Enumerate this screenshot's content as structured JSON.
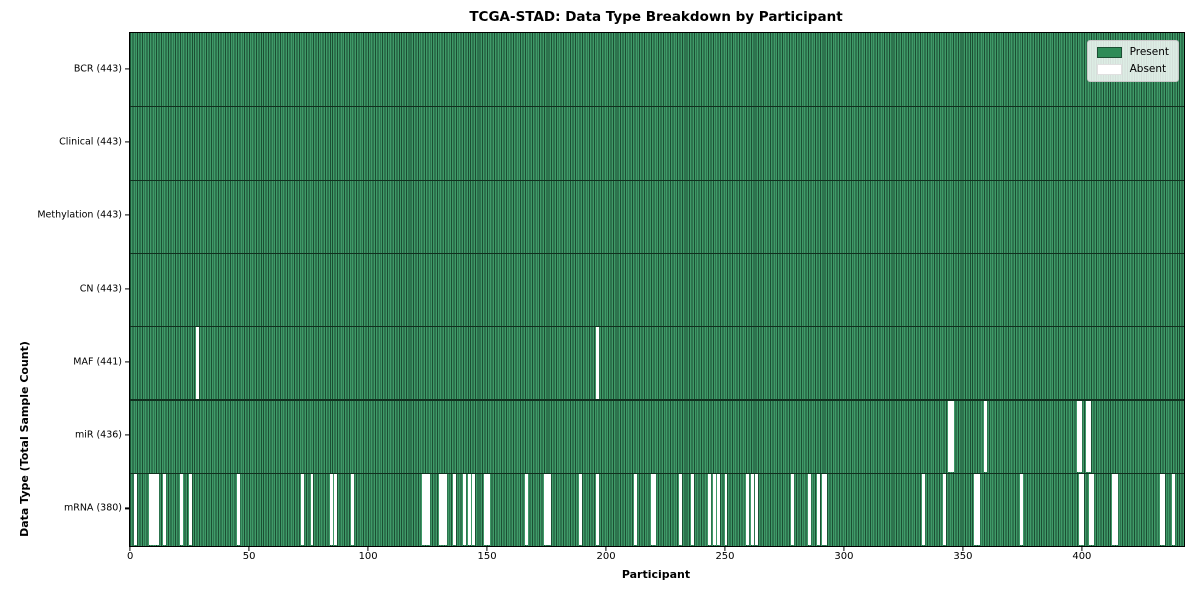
{
  "title": "TCGA-STAD: Data Type Breakdown by Participant",
  "xlabel": "Participant",
  "ylabel": "Data Type (Total Sample Count)",
  "legend": {
    "present_label": "Present",
    "absent_label": "Absent"
  },
  "colors": {
    "present": "#2e8b57",
    "present_light": "#3f9a68",
    "present_edge": "#1b4f33",
    "row_boundary": "#10301e",
    "absent": "#ffffff",
    "frame": "#000000",
    "legend_border": "#c8c8c8"
  },
  "chart_data": {
    "type": "heatmap",
    "title": "TCGA-STAD: Data Type Breakdown by Participant",
    "xlabel": "Participant",
    "ylabel": "Data Type (Total Sample Count)",
    "legend_entries": [
      "Present",
      "Absent"
    ],
    "legend_position": "upper right",
    "n_participants": 443,
    "x_ticks": [
      0,
      50,
      100,
      150,
      200,
      250,
      300,
      350,
      400
    ],
    "x_range": [
      -0.5,
      442.5
    ],
    "grid": false,
    "rows": [
      {
        "label": "BCR (443)",
        "data_type": "BCR",
        "present_count": 443,
        "absent_participants": []
      },
      {
        "label": "Clinical (443)",
        "data_type": "Clinical",
        "present_count": 443,
        "absent_participants": []
      },
      {
        "label": "Methylation (443)",
        "data_type": "Methylation",
        "present_count": 443,
        "absent_participants": []
      },
      {
        "label": "CN (443)",
        "data_type": "CN",
        "present_count": 443,
        "absent_participants": []
      },
      {
        "label": "MAF (441)",
        "data_type": "MAF",
        "present_count": 441,
        "absent_participants": [
          28,
          196
        ]
      },
      {
        "label": "miR (436)",
        "data_type": "miR",
        "present_count": 436,
        "absent_participants": [
          344,
          345,
          359,
          398,
          399,
          402,
          403
        ]
      },
      {
        "label": "mRNA (380)",
        "data_type": "mRNA",
        "present_count": 380,
        "absent_participants": [
          2,
          8,
          9,
          10,
          11,
          14,
          21,
          25,
          45,
          72,
          76,
          84,
          86,
          93,
          123,
          124,
          125,
          130,
          131,
          132,
          136,
          140,
          142,
          144,
          149,
          150,
          166,
          174,
          175,
          176,
          189,
          196,
          212,
          219,
          220,
          231,
          236,
          243,
          245,
          247,
          250,
          259,
          261,
          263,
          278,
          285,
          289,
          291,
          292,
          333,
          342,
          355,
          356,
          374,
          399,
          400,
          403,
          404,
          413,
          414,
          433,
          434,
          438
        ]
      }
    ]
  }
}
